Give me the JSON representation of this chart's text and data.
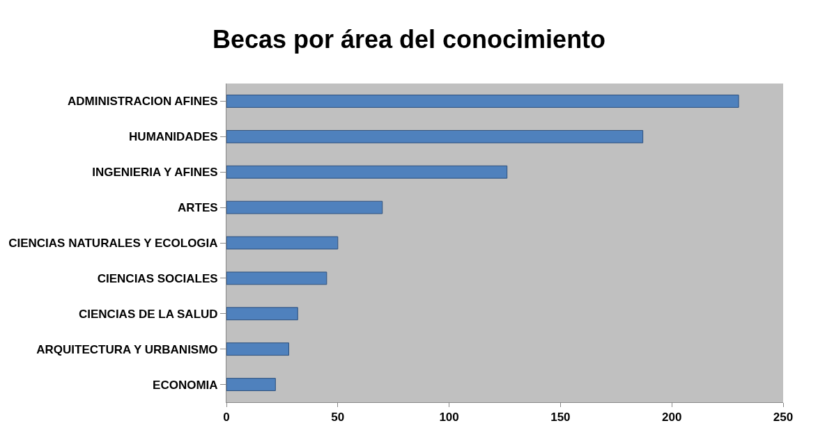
{
  "chart_data": {
    "type": "bar",
    "orientation": "horizontal",
    "title": "Becas por área del conocimiento",
    "categories": [
      "ADMINISTRACION AFINES",
      "HUMANIDADES",
      "INGENIERIA Y AFINES",
      "ARTES",
      "CIENCIAS NATURALES Y ECOLOGIA",
      "CIENCIAS SOCIALES",
      "CIENCIAS DE LA SALUD",
      "ARQUITECTURA Y URBANISMO",
      "ECONOMIA"
    ],
    "values": [
      230,
      187,
      126,
      70,
      50,
      45,
      32,
      28,
      22
    ],
    "color": "#4f81bd",
    "xlim": [
      0,
      250
    ],
    "xticks": [
      0,
      50,
      100,
      150,
      200,
      250
    ],
    "grid": false
  }
}
